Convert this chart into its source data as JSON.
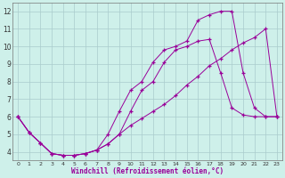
{
  "xlabel": "Windchill (Refroidissement éolien,°C)",
  "line1_x": [
    0,
    1,
    2,
    3,
    4,
    5,
    6,
    7,
    8,
    9,
    10,
    11,
    12,
    13,
    14,
    15,
    16,
    17,
    18,
    19,
    20,
    21,
    22,
    23
  ],
  "line1_y": [
    6.0,
    5.1,
    4.5,
    3.9,
    3.8,
    3.8,
    3.9,
    4.1,
    5.0,
    6.3,
    7.5,
    8.0,
    9.1,
    9.8,
    10.0,
    10.3,
    11.5,
    11.8,
    12.0,
    12.0,
    8.5,
    6.5,
    6.0,
    6.0
  ],
  "line2_x": [
    0,
    1,
    2,
    3,
    4,
    5,
    6,
    7,
    8,
    9,
    10,
    11,
    12,
    13,
    14,
    15,
    16,
    17,
    18,
    19,
    20,
    21,
    22,
    23
  ],
  "line2_y": [
    6.0,
    5.1,
    4.5,
    3.9,
    3.8,
    3.8,
    3.9,
    4.1,
    4.45,
    5.0,
    6.3,
    7.5,
    8.0,
    9.1,
    9.8,
    10.0,
    10.3,
    10.4,
    8.5,
    6.5,
    6.1,
    6.0,
    6.0,
    6.0
  ],
  "line3_x": [
    0,
    1,
    2,
    3,
    4,
    5,
    6,
    7,
    8,
    9,
    10,
    11,
    12,
    13,
    14,
    15,
    16,
    17,
    18,
    19,
    20,
    21,
    22,
    23
  ],
  "line3_y": [
    6.0,
    5.1,
    4.5,
    3.9,
    3.8,
    3.8,
    3.9,
    4.1,
    4.45,
    5.0,
    5.5,
    5.9,
    6.3,
    6.7,
    7.2,
    7.8,
    8.3,
    8.9,
    9.3,
    9.8,
    10.2,
    10.5,
    11.0,
    6.0
  ],
  "line_color": "#990099",
  "bg_color": "#cef0ea",
  "grid_color": "#aacccc",
  "xlim": [
    -0.5,
    23.5
  ],
  "ylim": [
    3.5,
    12.5
  ],
  "yticks": [
    4,
    5,
    6,
    7,
    8,
    9,
    10,
    11,
    12
  ],
  "xticks": [
    0,
    1,
    2,
    3,
    4,
    5,
    6,
    7,
    8,
    9,
    10,
    11,
    12,
    13,
    14,
    15,
    16,
    17,
    18,
    19,
    20,
    21,
    22,
    23
  ]
}
